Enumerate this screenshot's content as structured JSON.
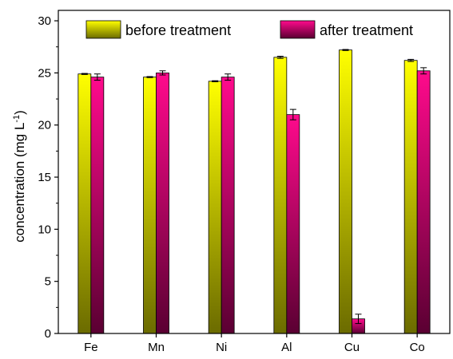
{
  "chart_data": {
    "type": "bar",
    "title": "",
    "xlabel": "",
    "ylabel": "concentration (mg L",
    "ylabel_sup": "-1",
    "ylabel_close": ")",
    "categories": [
      "Fe",
      "Mn",
      "Ni",
      "Al",
      "Cu",
      "Co"
    ],
    "series": [
      {
        "name": "before treatment",
        "values": [
          24.9,
          24.6,
          24.2,
          26.5,
          27.2,
          26.2
        ],
        "errors": [
          0.05,
          0.05,
          0.05,
          0.1,
          0.05,
          0.1
        ],
        "color_top": "#ffff00",
        "color_bottom": "#6b6b00"
      },
      {
        "name": "after treatment",
        "values": [
          24.6,
          25.0,
          24.6,
          21.0,
          1.4,
          25.2
        ],
        "errors": [
          0.3,
          0.2,
          0.3,
          0.5,
          0.45,
          0.3
        ],
        "color_top": "#ff0a8c",
        "color_bottom": "#5a0032"
      }
    ],
    "ylim": [
      0,
      31
    ],
    "yticks": [
      0,
      5,
      10,
      15,
      20,
      25,
      30
    ],
    "grid": false,
    "legend_position": "top"
  }
}
